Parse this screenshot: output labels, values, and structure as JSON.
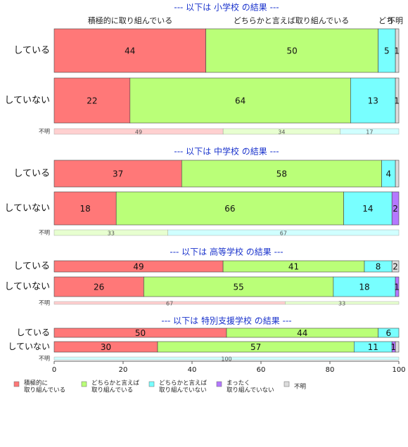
{
  "chart_data": {
    "type": "bar",
    "orientation": "horizontal",
    "stacked": true,
    "xlim": [
      0,
      100
    ],
    "x_ticks": [
      "0",
      "20",
      "40",
      "60",
      "80",
      "100"
    ],
    "top_labels": [
      "積極的に取り組んでいる",
      "どちらかと言えば取り組んでいる",
      "どち",
      "不明"
    ],
    "categories": [
      {
        "name": "積極的に\n取り組んでいる",
        "color": "#ff7878"
      },
      {
        "name": "どちらかと言えば\n取り組んでいる",
        "color": "#baff78"
      },
      {
        "name": "どちらかと言えば\n取り組んでいない",
        "color": "#78ffff"
      },
      {
        "name": "まったく\n取り組んでいない",
        "color": "#b478ff"
      },
      {
        "name": "不明",
        "color": "#dcdcdc"
      }
    ],
    "panels": [
      {
        "title": "--- 以下は 小学校 の結果 ---",
        "rows": [
          {
            "label": "している",
            "values": [
              44,
              50,
              5,
              0,
              1
            ],
            "labels": [
              "44",
              "50",
              "5",
              "",
              "1"
            ]
          },
          {
            "label": "していない",
            "values": [
              22,
              64,
              13,
              0,
              1
            ],
            "labels": [
              "22",
              "64",
              "13",
              "",
              "1"
            ]
          }
        ],
        "unknown": {
          "label": "不明",
          "values": [
            49,
            34,
            17,
            0,
            0
          ],
          "labels": [
            "49",
            "34",
            "17",
            "",
            ""
          ]
        }
      },
      {
        "title": "--- 以下は 中学校 の結果 ---",
        "rows": [
          {
            "label": "している",
            "values": [
              37,
              58,
              4,
              0,
              1
            ],
            "labels": [
              "37",
              "58",
              "4",
              "",
              ""
            ]
          },
          {
            "label": "していない",
            "values": [
              18,
              66,
              14,
              2,
              0
            ],
            "labels": [
              "18",
              "66",
              "14",
              "2",
              ""
            ]
          }
        ],
        "unknown": {
          "label": "不明",
          "values": [
            0,
            33,
            67,
            0,
            0
          ],
          "labels": [
            "",
            "33",
            "67",
            "",
            ""
          ]
        }
      },
      {
        "title": "--- 以下は 高等学校 の結果 ---",
        "rows": [
          {
            "label": "している",
            "values": [
              49,
              41,
              8,
              0,
              2
            ],
            "labels": [
              "49",
              "41",
              "8",
              "",
              "2"
            ]
          },
          {
            "label": "していない",
            "values": [
              26,
              55,
              18,
              1,
              0
            ],
            "labels": [
              "26",
              "55",
              "18",
              "1",
              ""
            ]
          }
        ],
        "unknown": {
          "label": "不明",
          "values": [
            67,
            33,
            0,
            0,
            0
          ],
          "labels": [
            "67",
            "33",
            "",
            "",
            ""
          ]
        }
      },
      {
        "title": "--- 以下は 特別支援学校 の結果 ---",
        "rows": [
          {
            "label": "している",
            "values": [
              50,
              44,
              6,
              0,
              0
            ],
            "labels": [
              "50",
              "44",
              "6",
              "",
              ""
            ]
          },
          {
            "label": "していない",
            "values": [
              30,
              57,
              11,
              1,
              1
            ],
            "labels": [
              "30",
              "57",
              "11",
              "1",
              ""
            ]
          }
        ],
        "unknown": {
          "label": "不明",
          "values": [
            0,
            0,
            100,
            0,
            0
          ],
          "labels": [
            "",
            "",
            "100",
            "",
            ""
          ]
        }
      }
    ]
  }
}
